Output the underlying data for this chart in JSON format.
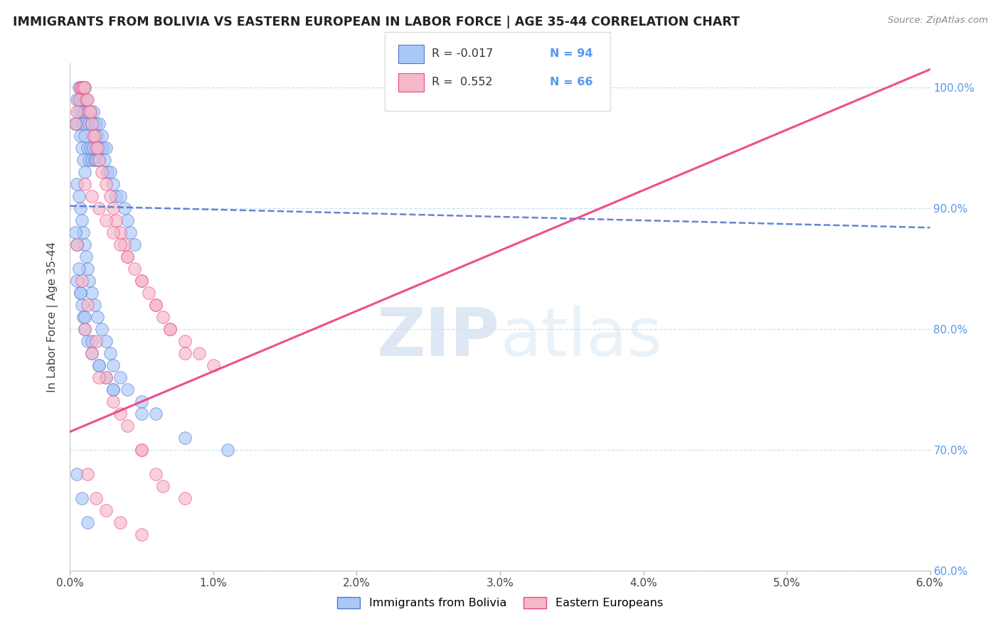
{
  "title": "IMMIGRANTS FROM BOLIVIA VS EASTERN EUROPEAN IN LABOR FORCE | AGE 35-44 CORRELATION CHART",
  "source": "Source: ZipAtlas.com",
  "ylabel": "In Labor Force | Age 35-44",
  "xlim": [
    0.0,
    6.0
  ],
  "ylim": [
    60.0,
    102.0
  ],
  "x_tick_positions": [
    0,
    1,
    2,
    3,
    4,
    5,
    6
  ],
  "x_tick_labels": [
    "0.0%",
    "1.0%",
    "2.0%",
    "3.0%",
    "4.0%",
    "5.0%",
    "6.0%"
  ],
  "y_tick_positions": [
    60,
    70,
    80,
    90,
    100
  ],
  "y_tick_labels": [
    "60.0%",
    "70.0%",
    "80.0%",
    "90.0%",
    "100.0%"
  ],
  "color_bolivia": "#a8c8f8",
  "color_eastern": "#f4b8c8",
  "color_trend_bolivia": "#5577cc",
  "color_trend_eastern": "#ee4488",
  "watermark_zip": "ZIP",
  "watermark_atlas": "atlas",
  "bolivia_trend_x0": 0.0,
  "bolivia_trend_y0": 90.2,
  "bolivia_trend_x1": 6.0,
  "bolivia_trend_y1": 88.4,
  "eastern_trend_x0": 0.0,
  "eastern_trend_y0": 71.5,
  "eastern_trend_x1": 6.0,
  "eastern_trend_y1": 101.5,
  "bolivia_x": [
    0.04,
    0.05,
    0.05,
    0.06,
    0.06,
    0.07,
    0.07,
    0.08,
    0.08,
    0.08,
    0.09,
    0.09,
    0.09,
    0.1,
    0.1,
    0.1,
    0.1,
    0.11,
    0.11,
    0.12,
    0.12,
    0.13,
    0.13,
    0.14,
    0.14,
    0.15,
    0.15,
    0.16,
    0.16,
    0.17,
    0.17,
    0.18,
    0.18,
    0.19,
    0.2,
    0.2,
    0.21,
    0.22,
    0.23,
    0.24,
    0.25,
    0.26,
    0.28,
    0.3,
    0.32,
    0.35,
    0.38,
    0.4,
    0.42,
    0.45,
    0.05,
    0.06,
    0.07,
    0.08,
    0.09,
    0.1,
    0.11,
    0.12,
    0.13,
    0.15,
    0.17,
    0.19,
    0.22,
    0.25,
    0.28,
    0.3,
    0.35,
    0.4,
    0.5,
    0.6,
    0.04,
    0.05,
    0.06,
    0.07,
    0.08,
    0.09,
    0.1,
    0.12,
    0.15,
    0.2,
    0.25,
    0.3,
    0.05,
    0.07,
    0.1,
    0.15,
    0.2,
    0.3,
    0.5,
    0.8,
    1.1,
    0.05,
    0.08,
    0.12
  ],
  "bolivia_y": [
    97,
    99,
    97,
    100,
    98,
    99,
    96,
    100,
    98,
    95,
    99,
    97,
    94,
    100,
    98,
    96,
    93,
    99,
    97,
    98,
    95,
    97,
    94,
    98,
    95,
    97,
    94,
    98,
    95,
    97,
    94,
    97,
    94,
    96,
    97,
    94,
    95,
    96,
    95,
    94,
    95,
    93,
    93,
    92,
    91,
    91,
    90,
    89,
    88,
    87,
    92,
    91,
    90,
    89,
    88,
    87,
    86,
    85,
    84,
    83,
    82,
    81,
    80,
    79,
    78,
    77,
    76,
    75,
    74,
    73,
    88,
    87,
    85,
    83,
    82,
    81,
    80,
    79,
    78,
    77,
    76,
    75,
    84,
    83,
    81,
    79,
    77,
    75,
    73,
    71,
    70,
    68,
    66,
    64
  ],
  "eastern_x": [
    0.04,
    0.05,
    0.06,
    0.07,
    0.08,
    0.09,
    0.1,
    0.11,
    0.12,
    0.13,
    0.14,
    0.15,
    0.16,
    0.17,
    0.18,
    0.19,
    0.2,
    0.22,
    0.25,
    0.28,
    0.3,
    0.32,
    0.35,
    0.38,
    0.4,
    0.45,
    0.5,
    0.55,
    0.6,
    0.65,
    0.7,
    0.8,
    0.9,
    1.0,
    0.1,
    0.15,
    0.2,
    0.25,
    0.3,
    0.35,
    0.4,
    0.5,
    0.6,
    0.7,
    0.8,
    0.05,
    0.08,
    0.12,
    0.18,
    0.25,
    0.35,
    0.5,
    0.1,
    0.15,
    0.2,
    0.3,
    0.4,
    0.5,
    0.6,
    0.8,
    0.12,
    0.18,
    0.25,
    0.35,
    0.5,
    0.65
  ],
  "eastern_y": [
    97,
    98,
    99,
    100,
    100,
    100,
    100,
    99,
    99,
    98,
    98,
    97,
    96,
    96,
    95,
    95,
    94,
    93,
    92,
    91,
    90,
    89,
    88,
    87,
    86,
    85,
    84,
    83,
    82,
    81,
    80,
    79,
    78,
    77,
    92,
    91,
    90,
    89,
    88,
    87,
    86,
    84,
    82,
    80,
    78,
    87,
    84,
    82,
    79,
    76,
    73,
    70,
    80,
    78,
    76,
    74,
    72,
    70,
    68,
    66,
    68,
    66,
    65,
    64,
    63,
    67
  ]
}
